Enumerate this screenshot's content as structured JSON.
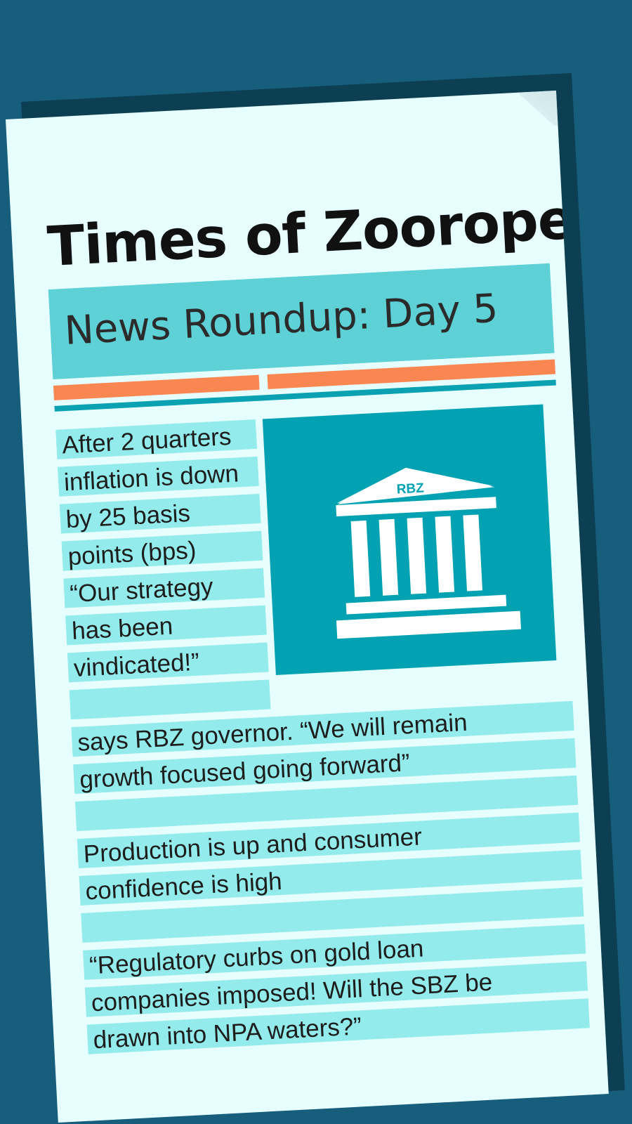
{
  "masthead": "Times of Zoorope",
  "section_title": "News Roundup: Day 5",
  "icon": {
    "name": "bank-building-icon",
    "label": "RBZ"
  },
  "colors": {
    "background": "#175e7c",
    "paper": "#e7fefe",
    "band": "#5dd1d6",
    "accent_orange": "#fa8752",
    "accent_teal": "#0aa2b2",
    "line_highlight": "#93ebeb",
    "icon_box": "#03a2b2"
  },
  "story_lines": [
    "After 2 quarters",
    "inflation is down",
    "by 25 basis",
    "points (bps)",
    "“Our strategy",
    "has been",
    "vindicated!”",
    "",
    "says RBZ governor. “We will remain",
    "growth focused going forward”",
    "",
    "Production is up and consumer",
    "confidence is high",
    "",
    "“Regulatory curbs on gold loan",
    "companies imposed! Will the SBZ be",
    "drawn into NPA waters?”"
  ]
}
